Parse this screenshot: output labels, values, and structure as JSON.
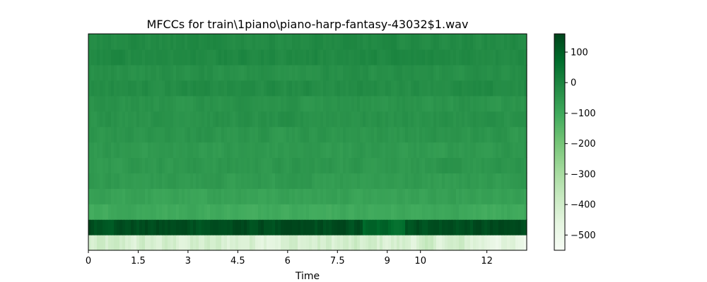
{
  "chart_data": {
    "type": "heatmap",
    "title": "MFCCs for train\\1piano\\piano-harp-fantasy-43032$1.wav",
    "xlabel": "Time",
    "ylabel": "",
    "xlim": [
      0,
      13.2
    ],
    "x_ticks": [
      {
        "value": 0,
        "label": "0"
      },
      {
        "value": 1.5,
        "label": "1.5"
      },
      {
        "value": 3,
        "label": "3"
      },
      {
        "value": 4.5,
        "label": "4.5"
      },
      {
        "value": 6,
        "label": "6"
      },
      {
        "value": 7.5,
        "label": "7.5"
      },
      {
        "value": 9,
        "label": "9"
      },
      {
        "value": 10,
        "label": "10"
      },
      {
        "value": 12,
        "label": "12"
      }
    ],
    "colormap": "Greens",
    "color_range": [
      -550,
      160
    ],
    "colorbar_ticks": [
      {
        "value": 100,
        "label": "100"
      },
      {
        "value": 0,
        "label": "0"
      },
      {
        "value": -100,
        "label": "−100"
      },
      {
        "value": -200,
        "label": "−200"
      },
      {
        "value": -300,
        "label": "−300"
      },
      {
        "value": -400,
        "label": "−400"
      },
      {
        "value": -500,
        "label": "−500"
      }
    ],
    "n_coefficients": 14,
    "row_levels_bottom_to_top": [
      -420,
      140,
      -100,
      -80,
      -60,
      -50,
      -55,
      -45,
      -35,
      -40,
      -20,
      -30,
      -10,
      -15
    ],
    "grid": false,
    "legend": "colorbar-right"
  }
}
